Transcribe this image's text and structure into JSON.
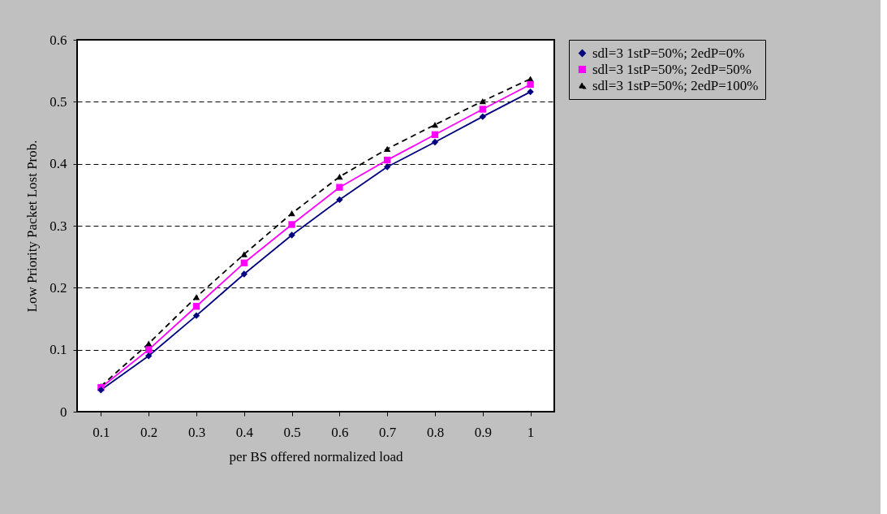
{
  "chart_data": {
    "type": "line",
    "xlabel": "per BS offered normalized load",
    "ylabel": "Low Priority Packet Lost Prob.",
    "categories": [
      "0.1",
      "0.2",
      "0.3",
      "0.4",
      "0.5",
      "0.6",
      "0.7",
      "0.8",
      "0.9",
      "1"
    ],
    "ylim": [
      0,
      0.6
    ],
    "yticks": [
      0,
      0.1,
      0.2,
      0.3,
      0.4,
      0.5,
      0.6
    ],
    "grid": "y",
    "legend": "right",
    "series": [
      {
        "name": "sdl=3 1stP=50%; 2edP=0%",
        "color": "#000080",
        "marker": "diamond",
        "line_style": "solid",
        "values": [
          0.035,
          0.09,
          0.155,
          0.222,
          0.285,
          0.342,
          0.395,
          0.435,
          0.476,
          0.516
        ]
      },
      {
        "name": "sdl=3 1stP=50%; 2edP=50%",
        "color": "#ff00ff",
        "marker": "square",
        "line_style": "solid",
        "values": [
          0.039,
          0.1,
          0.17,
          0.24,
          0.302,
          0.362,
          0.406,
          0.447,
          0.488,
          0.528
        ]
      },
      {
        "name": "sdl=3 1stP=50%; 2edP=100%",
        "color": "#000000",
        "marker": "triangle",
        "line_style": "dashed",
        "values": [
          0.041,
          0.11,
          0.185,
          0.254,
          0.32,
          0.379,
          0.424,
          0.463,
          0.501,
          0.537
        ]
      }
    ]
  }
}
